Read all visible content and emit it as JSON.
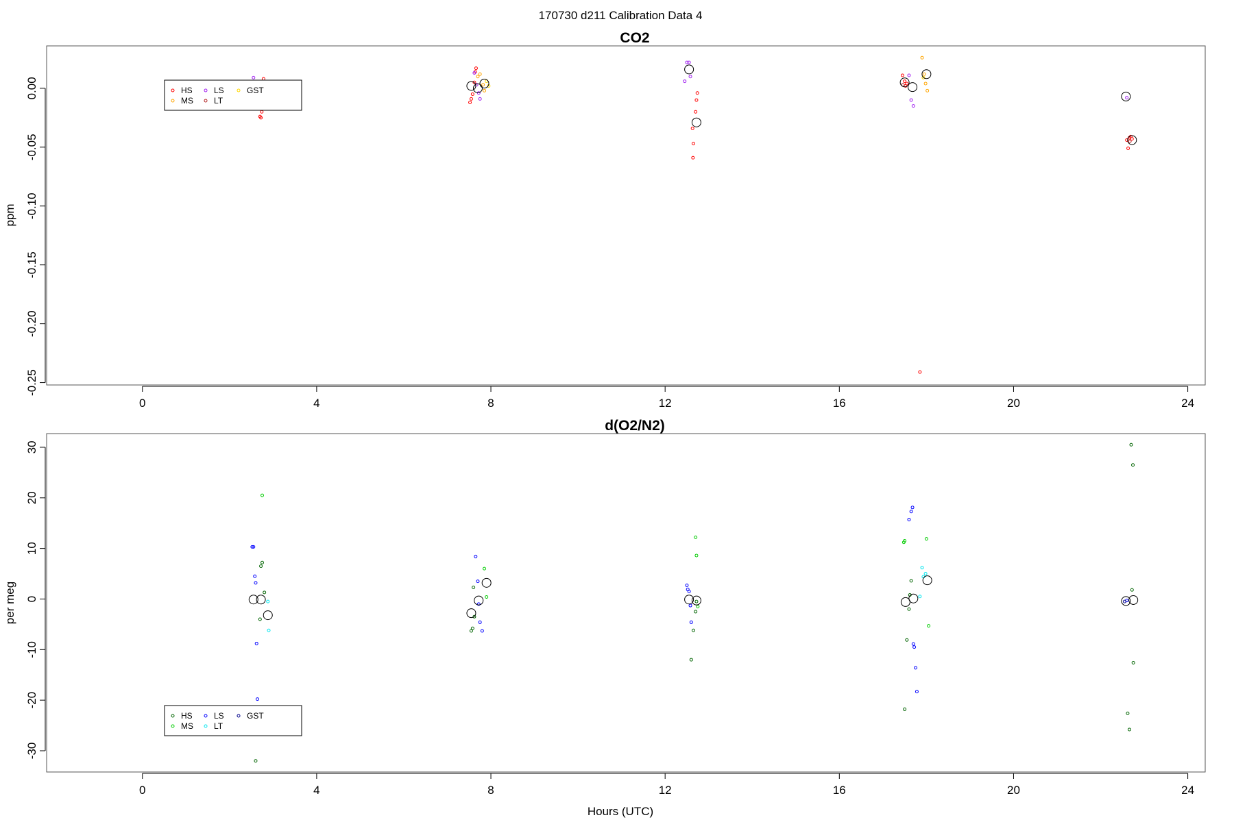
{
  "super_title": "170730   d211   Calibration Data 4",
  "chart_data": [
    {
      "type": "scatter",
      "title": "CO2",
      "xlabel": "",
      "ylabel": "ppm",
      "xlim": [
        -2.2,
        24.4
      ],
      "ylim": [
        -0.252,
        0.036
      ],
      "xticks": [
        0,
        4,
        8,
        12,
        16,
        20,
        24
      ],
      "xtick_labels": [
        "0",
        "4",
        "8",
        "12",
        "16",
        "20",
        "24"
      ],
      "yticks": [
        0.0,
        -0.05,
        -0.1,
        -0.15,
        -0.2,
        -0.25
      ],
      "ytick_labels": [
        "0.00",
        "-0.05",
        "-0.10",
        "-0.15",
        "-0.20",
        "-0.25"
      ],
      "legend": {
        "placement": "upper-left",
        "columns": 3
      },
      "series": [
        {
          "name": "HS",
          "color": "#ff0000",
          "points": [
            [
              2.7,
              -0.024
            ],
            [
              2.72,
              -0.025
            ],
            [
              2.74,
              -0.02
            ],
            [
              2.76,
              -0.015
            ],
            [
              2.78,
              0.008
            ],
            [
              7.52,
              -0.012
            ],
            [
              7.55,
              -0.009
            ],
            [
              7.58,
              -0.005
            ],
            [
              7.62,
              0.005
            ],
            [
              7.64,
              0.014
            ],
            [
              7.66,
              0.017
            ],
            [
              12.63,
              -0.034
            ],
            [
              12.65,
              -0.047
            ],
            [
              12.64,
              -0.059
            ],
            [
              12.7,
              -0.02
            ],
            [
              12.72,
              -0.01
            ],
            [
              12.74,
              -0.004
            ],
            [
              17.45,
              0.011
            ],
            [
              17.5,
              0.006
            ],
            [
              17.55,
              0.004
            ],
            [
              17.52,
              0.002
            ],
            [
              17.85,
              -0.241
            ],
            [
              22.6,
              -0.044
            ],
            [
              22.63,
              -0.051
            ],
            [
              22.66,
              -0.042
            ],
            [
              22.69,
              -0.041
            ],
            [
              22.72,
              -0.043
            ]
          ]
        },
        {
          "name": "MS",
          "color": "#ffa500",
          "points": [
            [
              7.7,
              0.01
            ],
            [
              7.75,
              0.012
            ],
            [
              7.82,
              0.003
            ],
            [
              7.85,
              -0.002
            ],
            [
              17.9,
              0.026
            ],
            [
              17.95,
              0.012
            ],
            [
              17.98,
              0.004
            ],
            [
              18.02,
              -0.002
            ]
          ]
        },
        {
          "name": "LS",
          "color": "#a020f0",
          "points": [
            [
              2.55,
              0.009
            ],
            [
              7.62,
              0.013
            ],
            [
              7.67,
              0.003
            ],
            [
              7.72,
              -0.004
            ],
            [
              7.75,
              -0.009
            ],
            [
              12.45,
              0.006
            ],
            [
              12.5,
              0.022
            ],
            [
              12.55,
              0.022
            ],
            [
              12.58,
              0.01
            ],
            [
              17.6,
              0.011
            ],
            [
              17.65,
              -0.01
            ],
            [
              17.7,
              -0.015
            ],
            [
              22.6,
              -0.008
            ]
          ]
        },
        {
          "name": "LT",
          "color": "#b22222",
          "points": [
            [
              17.46,
              0.003
            ],
            [
              22.67,
              -0.045
            ]
          ]
        },
        {
          "name": "GST",
          "color": "#ffd700",
          "points": [
            [
              7.9,
              0.006
            ],
            [
              7.95,
              0.002
            ],
            [
              17.93,
              0.009
            ]
          ]
        },
        {
          "name": "",
          "color": "#000000",
          "size": "large",
          "points": [
            [
              7.55,
              0.002
            ],
            [
              7.7,
              0.0
            ],
            [
              7.85,
              0.004
            ],
            [
              12.55,
              0.016
            ],
            [
              12.72,
              -0.029
            ],
            [
              17.5,
              0.005
            ],
            [
              17.68,
              0.001
            ],
            [
              18.0,
              0.012
            ],
            [
              22.58,
              -0.007
            ],
            [
              22.72,
              -0.044
            ]
          ]
        }
      ]
    },
    {
      "type": "scatter",
      "title": "d(O2/N2)",
      "xlabel": "Hours (UTC)",
      "ylabel": "per meg",
      "xlim": [
        -2.2,
        24.4
      ],
      "ylim": [
        -34.2,
        32.7
      ],
      "xticks": [
        0,
        4,
        8,
        12,
        16,
        20,
        24
      ],
      "xtick_labels": [
        "0",
        "4",
        "8",
        "12",
        "16",
        "20",
        "24"
      ],
      "yticks": [
        30,
        20,
        10,
        0,
        -10,
        -20,
        -30
      ],
      "ytick_labels": [
        "30",
        "20",
        "10",
        "0",
        "-10",
        "-20",
        "-30"
      ],
      "legend": {
        "placement": "lower-left",
        "columns": 3
      },
      "series": [
        {
          "name": "HS",
          "color": "#006400",
          "points": [
            [
              2.6,
              -32.0
            ],
            [
              2.7,
              -4.0
            ],
            [
              2.72,
              6.5
            ],
            [
              2.75,
              7.2
            ],
            [
              2.8,
              1.3
            ],
            [
              7.55,
              -6.3
            ],
            [
              7.58,
              -5.8
            ],
            [
              7.6,
              2.3
            ],
            [
              7.62,
              -3.5
            ],
            [
              12.6,
              -12.0
            ],
            [
              12.65,
              -6.2
            ],
            [
              12.7,
              -2.5
            ],
            [
              12.72,
              -0.5
            ],
            [
              17.5,
              -21.8
            ],
            [
              17.55,
              -8.1
            ],
            [
              17.6,
              -2.0
            ],
            [
              17.62,
              0.8
            ],
            [
              17.65,
              3.6
            ],
            [
              22.62,
              -22.6
            ],
            [
              22.66,
              -25.8
            ],
            [
              22.7,
              30.5
            ],
            [
              22.72,
              1.8
            ],
            [
              22.75,
              -12.6
            ],
            [
              22.74,
              26.5
            ]
          ]
        },
        {
          "name": "MS",
          "color": "#00cc00",
          "points": [
            [
              2.75,
              20.5
            ],
            [
              7.85,
              6.0
            ],
            [
              7.9,
              0.4
            ],
            [
              12.7,
              12.2
            ],
            [
              12.72,
              8.6
            ],
            [
              12.75,
              -1.5
            ],
            [
              17.48,
              11.2
            ],
            [
              17.5,
              11.5
            ],
            [
              18.0,
              11.9
            ],
            [
              18.05,
              -5.3
            ]
          ]
        },
        {
          "name": "LS",
          "color": "#0000ff",
          "points": [
            [
              2.52,
              10.3
            ],
            [
              2.55,
              10.3
            ],
            [
              2.58,
              4.5
            ],
            [
              2.6,
              3.2
            ],
            [
              2.62,
              -8.8
            ],
            [
              2.64,
              -19.8
            ],
            [
              7.65,
              8.4
            ],
            [
              7.7,
              3.5
            ],
            [
              7.72,
              -1.0
            ],
            [
              7.75,
              -4.6
            ],
            [
              7.8,
              -6.3
            ],
            [
              12.5,
              2.7
            ],
            [
              12.52,
              1.9
            ],
            [
              12.55,
              1.5
            ],
            [
              12.58,
              -1.3
            ],
            [
              12.6,
              -4.6
            ],
            [
              17.6,
              15.7
            ],
            [
              17.65,
              17.3
            ],
            [
              17.68,
              18.1
            ],
            [
              17.7,
              -8.9
            ],
            [
              17.72,
              -9.5
            ],
            [
              17.75,
              -13.6
            ],
            [
              17.78,
              -18.3
            ],
            [
              22.6,
              -0.3
            ]
          ]
        },
        {
          "name": "LT",
          "color": "#00e5ee",
          "points": [
            [
              2.88,
              -0.5
            ],
            [
              2.9,
              -6.2
            ],
            [
              17.85,
              0.5
            ],
            [
              17.9,
              6.2
            ],
            [
              17.93,
              4.4
            ],
            [
              17.98,
              5.0
            ]
          ]
        },
        {
          "name": "GST",
          "color": "#00008b",
          "points": [
            [
              22.55,
              -0.5
            ]
          ]
        },
        {
          "name": "",
          "color": "#000000",
          "size": "large",
          "points": [
            [
              2.55,
              -0.1
            ],
            [
              2.72,
              -0.1
            ],
            [
              2.88,
              -3.2
            ],
            [
              7.55,
              -2.8
            ],
            [
              7.72,
              -0.3
            ],
            [
              7.9,
              3.2
            ],
            [
              12.55,
              -0.1
            ],
            [
              12.72,
              -0.3
            ],
            [
              17.52,
              -0.6
            ],
            [
              17.7,
              0.1
            ],
            [
              18.02,
              3.7
            ],
            [
              22.58,
              -0.4
            ],
            [
              22.75,
              -0.2
            ]
          ]
        }
      ]
    }
  ]
}
